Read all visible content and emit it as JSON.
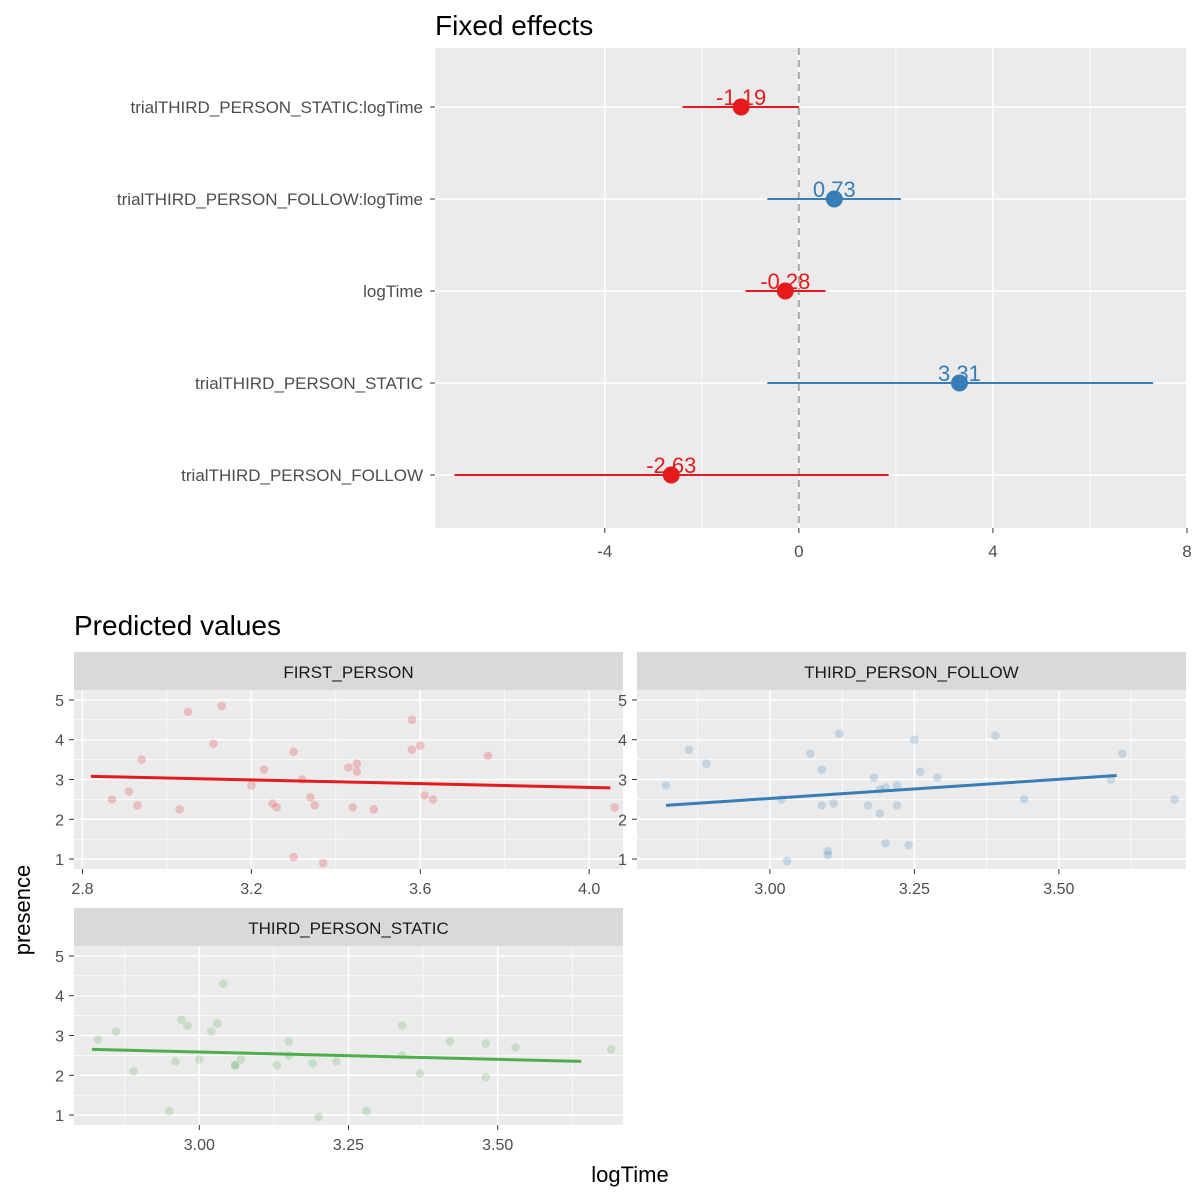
{
  "colors": {
    "red": "#E41A1C",
    "blue": "#377EB8",
    "green": "#4DAF4A",
    "panel": "#EBEBEB",
    "strip": "#D9D9D9",
    "grid": "#FFFFFF",
    "text": "#4D4D4D",
    "title": "#000000",
    "zero": "#AAAAAA"
  },
  "chart_data": [
    {
      "type": "forest",
      "title": "Fixed effects",
      "xlim": [
        -7.5,
        8
      ],
      "xticks": [
        -4,
        0,
        4,
        8
      ],
      "xtick_labels": [
        "-4",
        "0",
        "4",
        "8"
      ],
      "terms": [
        {
          "label": "trialTHIRD_PERSON_STATIC:logTime",
          "estimate": -1.19,
          "lo": -2.4,
          "hi": 0.0,
          "value_label": "-1.19",
          "color": "red"
        },
        {
          "label": "trialTHIRD_PERSON_FOLLOW:logTime",
          "estimate": 0.73,
          "lo": -0.65,
          "hi": 2.1,
          "value_label": "0.73",
          "color": "blue"
        },
        {
          "label": "logTime",
          "estimate": -0.28,
          "lo": -1.1,
          "hi": 0.55,
          "value_label": "-0.28",
          "color": "red"
        },
        {
          "label": "trialTHIRD_PERSON_STATIC",
          "estimate": 3.31,
          "lo": -0.65,
          "hi": 7.3,
          "value_label": "3.31",
          "color": "blue"
        },
        {
          "label": "trialTHIRD_PERSON_FOLLOW",
          "estimate": -2.63,
          "lo": -7.1,
          "hi": 1.85,
          "value_label": "-2.63",
          "color": "red"
        }
      ]
    },
    {
      "type": "scatter",
      "title": "Predicted values",
      "xlabel": "logTime",
      "ylabel": "presence",
      "facets": [
        {
          "strip": "FIRST_PERSON",
          "color": "green_is_not_used",
          "line_color": "red",
          "xlim": [
            2.78,
            4.08
          ],
          "ylim": [
            0.75,
            5.25
          ],
          "xticks": [
            2.8,
            3.2,
            3.6,
            4.0
          ],
          "xtick_labels": [
            "2.8",
            "3.2",
            "3.6",
            "4.0"
          ],
          "yticks": [
            1,
            2,
            3,
            4,
            5
          ],
          "ytick_labels": [
            "1",
            "2",
            "3",
            "4",
            "5"
          ],
          "line": [
            [
              2.82,
              3.08
            ],
            [
              4.05,
              2.79
            ]
          ],
          "points": [
            [
              2.87,
              2.5
            ],
            [
              2.91,
              2.7
            ],
            [
              2.93,
              2.35
            ],
            [
              2.94,
              3.5
            ],
            [
              3.03,
              2.25
            ],
            [
              3.05,
              4.7
            ],
            [
              3.11,
              3.9
            ],
            [
              3.13,
              4.85
            ],
            [
              3.2,
              2.85
            ],
            [
              3.23,
              3.25
            ],
            [
              3.25,
              2.4
            ],
            [
              3.26,
              2.3
            ],
            [
              3.3,
              3.7
            ],
            [
              3.3,
              1.05
            ],
            [
              3.32,
              3.0
            ],
            [
              3.34,
              2.55
            ],
            [
              3.35,
              2.35
            ],
            [
              3.37,
              0.9
            ],
            [
              3.43,
              3.3
            ],
            [
              3.44,
              2.3
            ],
            [
              3.45,
              3.2
            ],
            [
              3.45,
              3.4
            ],
            [
              3.49,
              2.25
            ],
            [
              3.58,
              4.5
            ],
            [
              3.58,
              3.75
            ],
            [
              3.6,
              3.85
            ],
            [
              3.61,
              2.6
            ],
            [
              3.63,
              2.5
            ],
            [
              3.76,
              3.6
            ],
            [
              4.06,
              2.3
            ]
          ]
        },
        {
          "strip": "THIRD_PERSON_FOLLOW",
          "line_color": "blue",
          "xlim": [
            2.77,
            3.72
          ],
          "ylim": [
            0.75,
            5.25
          ],
          "xticks": [
            3.0,
            3.25,
            3.5
          ],
          "xtick_labels": [
            "3.00",
            "3.25",
            "3.50"
          ],
          "yticks": [
            1,
            2,
            3,
            4,
            5
          ],
          "ytick_labels": [
            "1",
            "2",
            "3",
            "4",
            "5"
          ],
          "line": [
            [
              2.82,
              2.35
            ],
            [
              3.6,
              3.1
            ]
          ],
          "points": [
            [
              2.82,
              2.85
            ],
            [
              2.86,
              3.75
            ],
            [
              2.89,
              3.4
            ],
            [
              3.02,
              2.5
            ],
            [
              3.03,
              0.95
            ],
            [
              3.07,
              3.65
            ],
            [
              3.09,
              3.25
            ],
            [
              3.09,
              2.35
            ],
            [
              3.1,
              1.1
            ],
            [
              3.1,
              1.2
            ],
            [
              3.11,
              2.4
            ],
            [
              3.12,
              4.15
            ],
            [
              3.17,
              2.35
            ],
            [
              3.18,
              3.05
            ],
            [
              3.19,
              2.15
            ],
            [
              3.19,
              2.75
            ],
            [
              3.2,
              2.8
            ],
            [
              3.2,
              1.4
            ],
            [
              3.22,
              2.35
            ],
            [
              3.22,
              2.85
            ],
            [
              3.24,
              1.35
            ],
            [
              3.25,
              4.0
            ],
            [
              3.26,
              3.2
            ],
            [
              3.29,
              3.05
            ],
            [
              3.39,
              4.1
            ],
            [
              3.44,
              2.5
            ],
            [
              3.59,
              3.0
            ],
            [
              3.61,
              3.65
            ],
            [
              3.7,
              2.5
            ]
          ]
        },
        {
          "strip": "THIRD_PERSON_STATIC",
          "line_color": "green",
          "xlim": [
            2.79,
            3.71
          ],
          "ylim": [
            0.75,
            5.25
          ],
          "xticks": [
            3.0,
            3.25,
            3.5
          ],
          "xtick_labels": [
            "3.00",
            "3.25",
            "3.50"
          ],
          "yticks": [
            1,
            2,
            3,
            4,
            5
          ],
          "ytick_labels": [
            "1",
            "2",
            "3",
            "4",
            "5"
          ],
          "line": [
            [
              2.82,
              2.65
            ],
            [
              3.64,
              2.35
            ]
          ],
          "points": [
            [
              2.83,
              2.9
            ],
            [
              2.86,
              3.1
            ],
            [
              2.89,
              2.1
            ],
            [
              2.95,
              1.1
            ],
            [
              2.96,
              2.35
            ],
            [
              2.97,
              3.4
            ],
            [
              2.98,
              3.25
            ],
            [
              3.0,
              2.4
            ],
            [
              3.02,
              3.1
            ],
            [
              3.03,
              3.3
            ],
            [
              3.04,
              4.3
            ],
            [
              3.06,
              2.25
            ],
            [
              3.06,
              2.25
            ],
            [
              3.07,
              2.4
            ],
            [
              3.13,
              2.25
            ],
            [
              3.15,
              2.5
            ],
            [
              3.15,
              2.85
            ],
            [
              3.19,
              2.3
            ],
            [
              3.2,
              0.95
            ],
            [
              3.23,
              2.35
            ],
            [
              3.28,
              1.1
            ],
            [
              3.34,
              2.5
            ],
            [
              3.34,
              3.25
            ],
            [
              3.37,
              2.05
            ],
            [
              3.42,
              2.85
            ],
            [
              3.48,
              1.95
            ],
            [
              3.48,
              2.8
            ],
            [
              3.53,
              2.7
            ],
            [
              3.69,
              2.65
            ]
          ]
        }
      ]
    }
  ]
}
